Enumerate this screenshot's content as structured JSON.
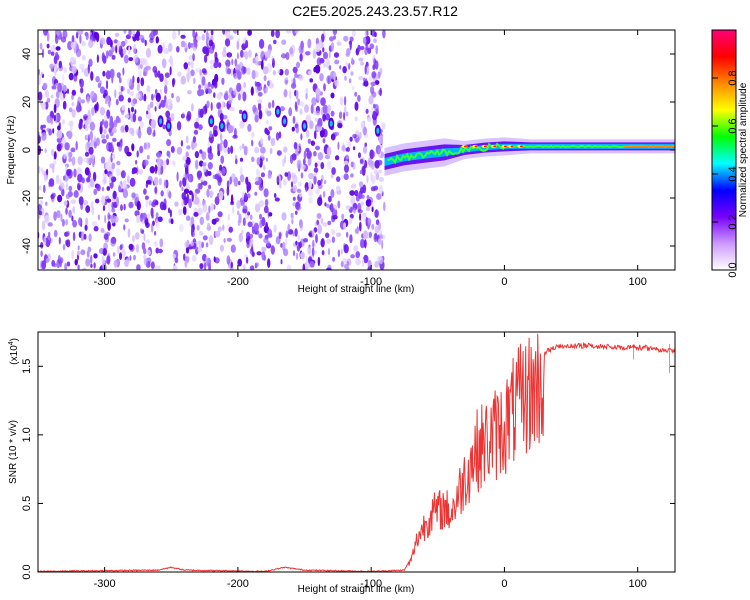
{
  "title": "C2E5.2025.243.23.57.R12",
  "chart_data": [
    {
      "type": "heatmap",
      "xlabel": "Height of straight line (km)",
      "ylabel": "Frequency (Hz)",
      "xlim": [
        -350,
        128
      ],
      "ylim": [
        -50,
        50
      ],
      "xticks": [
        -300,
        -200,
        -100,
        0,
        100
      ],
      "xtick_labels": [
        "-300",
        "-200",
        "-100",
        "0",
        "100"
      ],
      "yticks": [
        -40,
        -20,
        0,
        20,
        40
      ],
      "ytick_labels": [
        "-40",
        "-20",
        "0",
        "20",
        "40"
      ],
      "data_region_x": [
        -350,
        -90
      ],
      "line_feature": [
        {
          "x": -90,
          "y": -5
        },
        {
          "x": -75,
          "y": -3
        },
        {
          "x": -60,
          "y": -2
        },
        {
          "x": -45,
          "y": -1
        },
        {
          "x": -30,
          "y": 0
        },
        {
          "x": -15,
          "y": 1
        },
        {
          "x": 0,
          "y": 1.5
        },
        {
          "x": 20,
          "y": 1.5
        },
        {
          "x": 60,
          "y": 1.5
        },
        {
          "x": 100,
          "y": 1.5
        },
        {
          "x": 128,
          "y": 1.5
        }
      ],
      "colorbar": {
        "label": "Normalized spectral amplitude",
        "range": [
          0,
          1
        ],
        "ticks": [
          0.0,
          0.2,
          0.4,
          0.6,
          0.8
        ],
        "tick_labels": [
          "0.0",
          "0.2",
          "0.4",
          "0.6",
          "0.8"
        ],
        "colors": [
          "#ffffff",
          "#cc99ff",
          "#7700ff",
          "#0000ff",
          "#00ffff",
          "#00ff00",
          "#ffff00",
          "#ff8800",
          "#ff0000",
          "#ff0077"
        ]
      }
    },
    {
      "type": "line",
      "xlabel": "Height of straight line (km)",
      "ylabel": "SNR (10 * v/v)",
      "yscale_label": "(x10",
      "yscale_exp": "4",
      "yscale_close": ")",
      "xlim": [
        -350,
        128
      ],
      "ylim": [
        0,
        1.75
      ],
      "xticks": [
        -300,
        -200,
        -100,
        0,
        100
      ],
      "xtick_labels": [
        "-300",
        "-200",
        "-100",
        "0",
        "100"
      ],
      "yticks": [
        0.0,
        0.5,
        1.0,
        1.5
      ],
      "ytick_labels": [
        "0.0",
        "0.5",
        "1.0",
        "1.5"
      ],
      "color": "#ee3333",
      "series": [
        {
          "name": "SNR",
          "points": [
            [
              -350,
              0.0
            ],
            [
              -260,
              0.01
            ],
            [
              -250,
              0.03
            ],
            [
              -240,
              0.01
            ],
            [
              -180,
              0.0
            ],
            [
              -165,
              0.03
            ],
            [
              -150,
              0.01
            ],
            [
              -100,
              0.0
            ],
            [
              -75,
              0.01
            ],
            [
              -70,
              0.1
            ],
            [
              -65,
              0.3
            ],
            [
              -60,
              0.4
            ],
            [
              -55,
              0.5
            ],
            [
              -50,
              0.52
            ],
            [
              -45,
              0.55
            ],
            [
              -40,
              0.5
            ],
            [
              -35,
              0.65
            ],
            [
              -30,
              0.8
            ],
            [
              -25,
              0.95
            ],
            [
              -20,
              1.05
            ],
            [
              -15,
              1.1
            ],
            [
              -10,
              1.15
            ],
            [
              -5,
              1.2
            ],
            [
              0,
              1.25
            ],
            [
              5,
              1.35
            ],
            [
              10,
              1.42
            ],
            [
              15,
              1.5
            ],
            [
              20,
              1.55
            ],
            [
              25,
              1.6
            ],
            [
              30,
              1.62
            ],
            [
              35,
              1.65
            ],
            [
              40,
              1.66
            ],
            [
              60,
              1.67
            ],
            [
              80,
              1.66
            ],
            [
              100,
              1.66
            ],
            [
              120,
              1.64
            ],
            [
              128,
              1.64
            ]
          ]
        }
      ]
    }
  ]
}
